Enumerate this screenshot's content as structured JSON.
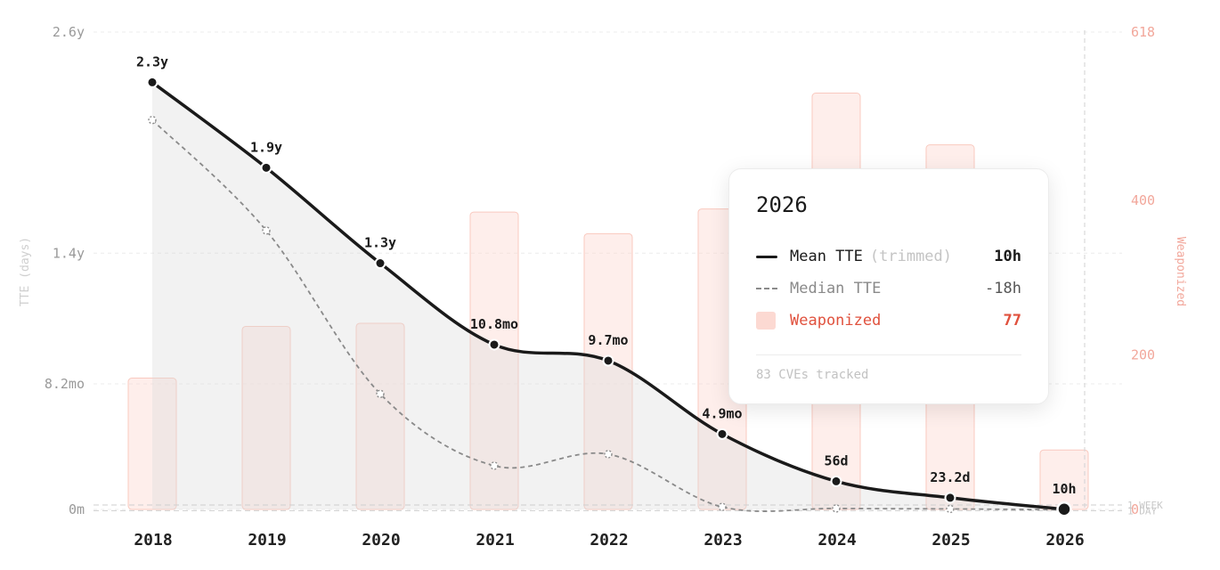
{
  "chart_data": {
    "type": "bar+line",
    "categories": [
      "2018",
      "2019",
      "2020",
      "2021",
      "2022",
      "2023",
      "2024",
      "2025",
      "2026"
    ],
    "left_axis": {
      "label": "TTE (days)",
      "ticks": [
        {
          "label": "0m",
          "days": 0
        },
        {
          "label": "8.2mo",
          "days": 250
        },
        {
          "label": "1.4y",
          "days": 510
        },
        {
          "label": "2.6y",
          "days": 950
        }
      ],
      "range_days": [
        0,
        950
      ]
    },
    "right_axis": {
      "label": "Weaponized",
      "ticks": [
        {
          "label": "0",
          "value": 0
        },
        {
          "label": "200",
          "value": 200
        },
        {
          "label": "400",
          "value": 400
        },
        {
          "label": "618",
          "value": 618
        }
      ],
      "range": [
        0,
        618
      ]
    },
    "series": [
      {
        "name": "Weaponized",
        "kind": "bar",
        "color": "#fcd9d2",
        "values": [
          170,
          237,
          241,
          385,
          357,
          389,
          539,
          472,
          77
        ]
      },
      {
        "name": "Mean TTE",
        "kind": "line",
        "color": "#1a1a1a",
        "values_days": [
          850,
          680,
          490,
          328,
          296,
          150,
          56,
          23.2,
          0.42
        ],
        "labels": [
          "2.3y",
          "1.9y",
          "1.3y",
          "10.8mo",
          "9.7mo",
          "4.9mo",
          "56d",
          "23.2d",
          "10h"
        ]
      },
      {
        "name": "Median TTE",
        "kind": "line",
        "style": "dashed",
        "color": "#8a8a8a",
        "values_days": [
          775,
          555,
          230,
          87,
          110,
          5,
          2,
          1,
          -0.75
        ]
      }
    ],
    "reference_lines": [
      {
        "label": "1 WEEK",
        "days": 7
      },
      {
        "label": "1 DAY",
        "days": 1
      }
    ],
    "highlight_category": "2026"
  },
  "tooltip": {
    "title": "2026",
    "rows": [
      {
        "label": "Mean TTE",
        "sub": "(trimmed)",
        "value": "10h"
      },
      {
        "label": "Median TTE",
        "sub": "",
        "value": "-18h"
      },
      {
        "label": "Weaponized",
        "sub": "",
        "value": "77"
      }
    ],
    "footer": "83 CVEs tracked"
  }
}
